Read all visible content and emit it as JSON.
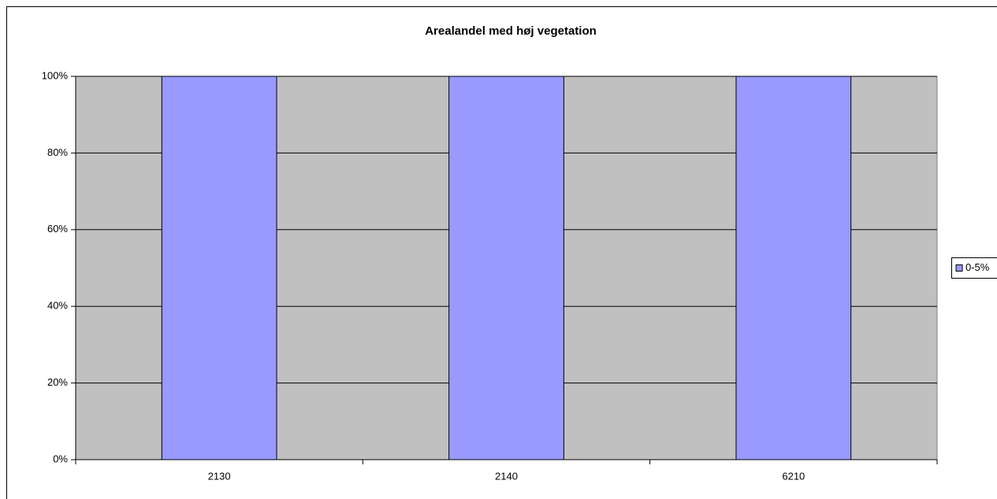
{
  "chart_data": {
    "type": "bar",
    "title": "Arealandel med høj vegetation",
    "categories": [
      "2130",
      "2140",
      "6210"
    ],
    "series": [
      {
        "name": "0-5%",
        "color": "#9999ff",
        "values": [
          100,
          100,
          100
        ]
      }
    ],
    "ylim": [
      0,
      100
    ],
    "yticks": [
      {
        "value": 0,
        "label": "0%"
      },
      {
        "value": 20,
        "label": "20%"
      },
      {
        "value": 40,
        "label": "40%"
      },
      {
        "value": 60,
        "label": "60%"
      },
      {
        "value": 80,
        "label": "80%"
      },
      {
        "value": 100,
        "label": "100%"
      }
    ],
    "grid": true,
    "legend": "right",
    "plot_background": "#c0c0c0"
  }
}
